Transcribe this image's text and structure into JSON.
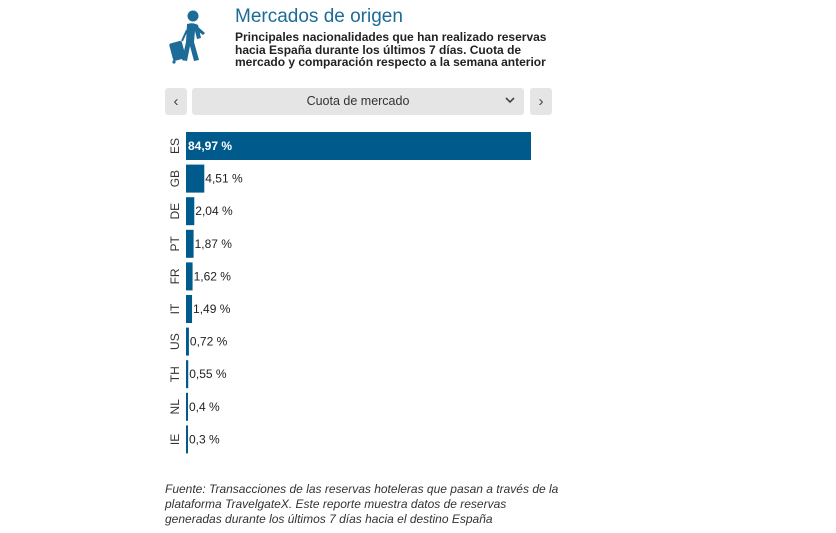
{
  "header": {
    "title": "Mercados de origen",
    "subtitle": "Principales nacionalidades que han realizado reservas hacia España durante los últimos 7 días. Cuota de mercado y comparación respecto a la semana anterior",
    "icon": "traveler-with-luggage-icon"
  },
  "controls": {
    "prev_icon": "‹",
    "next_icon": "›",
    "selected_metric": "Cuota de mercado",
    "chevron_icon": "⌄"
  },
  "colors": {
    "accent": "#1d6b97",
    "bar": "#005b8c"
  },
  "chart_data": {
    "type": "bar",
    "orientation": "horizontal",
    "categories": [
      "ES",
      "GB",
      "DE",
      "PT",
      "FR",
      "IT",
      "US",
      "TH",
      "NL",
      "IE"
    ],
    "values": [
      84.97,
      4.51,
      2.04,
      1.87,
      1.62,
      1.49,
      0.72,
      0.55,
      0.4,
      0.3
    ],
    "labels": [
      "84,97 %",
      "4,51 %",
      "2,04 %",
      "1,87 %",
      "1,62 %",
      "1,49 %",
      "0,72 %",
      "0,55 %",
      "0,4 %",
      "0,3 %"
    ],
    "xlim": [
      0,
      84.97
    ],
    "grid": false
  },
  "footer": {
    "text": "Fuente: Transacciones de las reservas hoteleras que pasan a través de la plataforma TravelgateX. Este reporte muestra datos de reservas generadas durante los últimos 7 días hacia el destino España"
  }
}
